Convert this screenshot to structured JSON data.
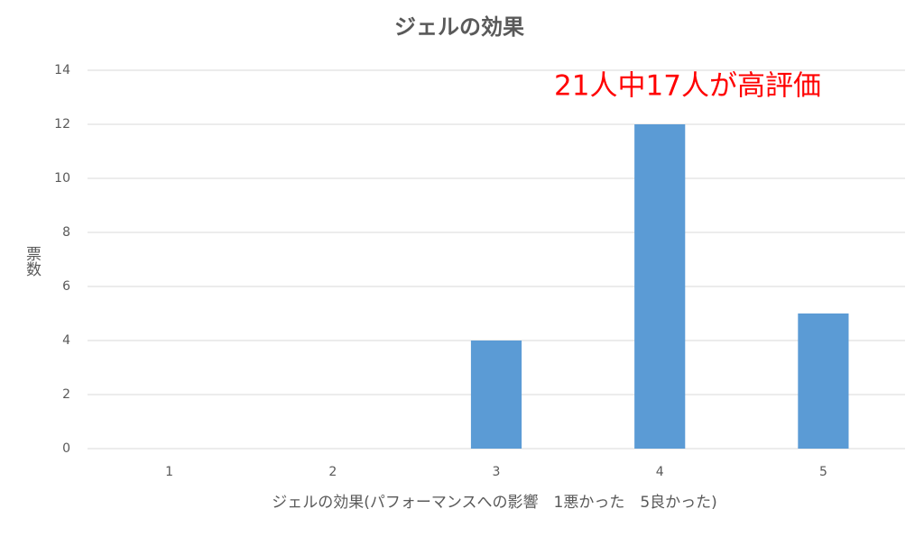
{
  "chart_data": {
    "type": "bar",
    "title": "ジェルの効果",
    "annotation": "21人中17人が高評価",
    "x_label": "ジェルの効果(パフォーマンスへの影響　1悪かった　5良かった)",
    "y_label": "票数",
    "categories": [
      "1",
      "2",
      "3",
      "4",
      "5"
    ],
    "values": [
      0,
      0,
      4,
      12,
      5
    ],
    "color": "#5b9bd5",
    "ylim": [
      0,
      14
    ],
    "yticks": [
      0,
      2,
      4,
      6,
      8,
      10,
      12,
      14
    ],
    "grid": true
  }
}
